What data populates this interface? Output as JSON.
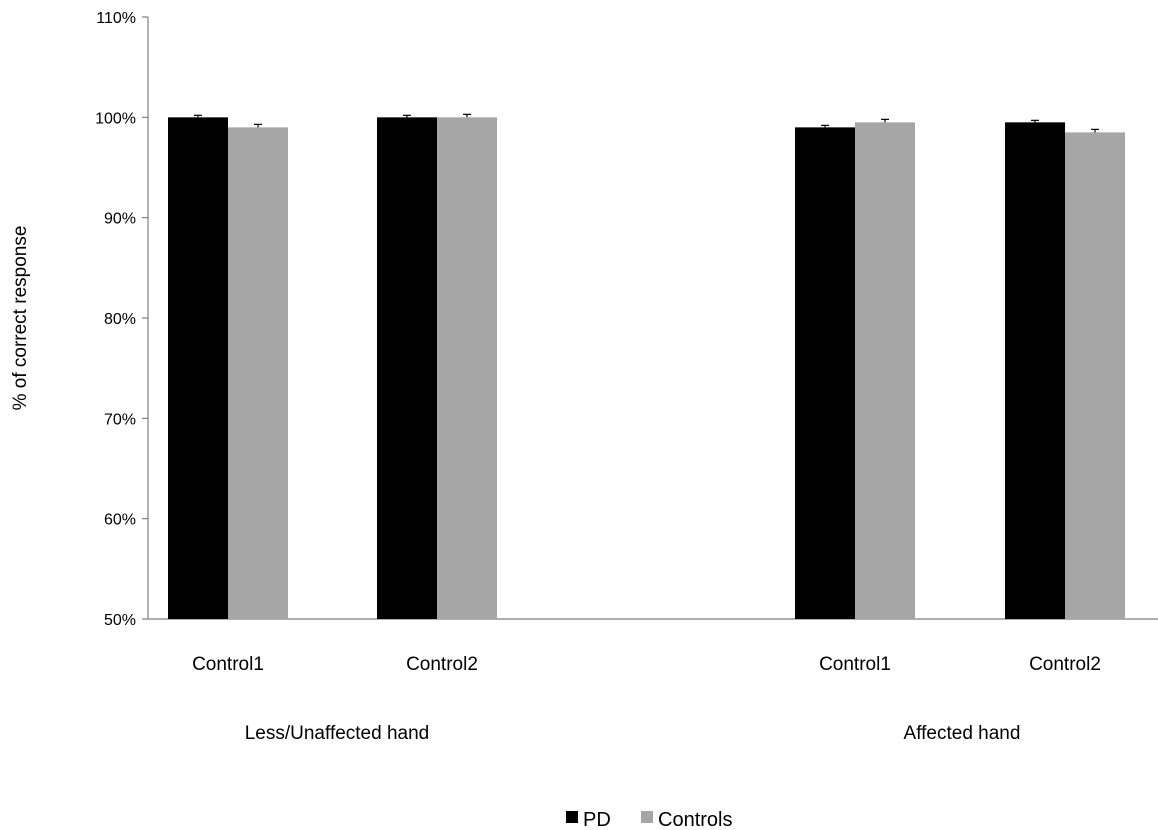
{
  "chart_data": {
    "type": "bar",
    "title": "",
    "xlabel": "",
    "ylabel": "% of correct response",
    "ylim": [
      50,
      110
    ],
    "yticks": [
      50,
      60,
      70,
      80,
      90,
      100,
      110
    ],
    "ytick_labels": [
      "50%",
      "60%",
      "70%",
      "80%",
      "90%",
      "100%",
      "110%"
    ],
    "grid": false,
    "legend_position": "bottom-center",
    "groups": [
      {
        "label": "Less/Unaffected hand",
        "categories": [
          {
            "label": "Control1",
            "values": [
              100,
              99.0
            ],
            "errors": [
              0.2,
              0.3
            ]
          },
          {
            "label": "Control2",
            "values": [
              100,
              100
            ],
            "errors": [
              0.2,
              0.3
            ]
          }
        ]
      },
      {
        "label": "Affected hand",
        "categories": [
          {
            "label": "Control1",
            "values": [
              99.0,
              99.5
            ],
            "errors": [
              0.2,
              0.3
            ]
          },
          {
            "label": "Control2",
            "values": [
              99.5,
              98.5
            ],
            "errors": [
              0.2,
              0.3
            ]
          }
        ]
      }
    ],
    "series": [
      {
        "name": "PD",
        "color": "#000000"
      },
      {
        "name": "Controls",
        "color": "#a6a6a6"
      }
    ]
  }
}
